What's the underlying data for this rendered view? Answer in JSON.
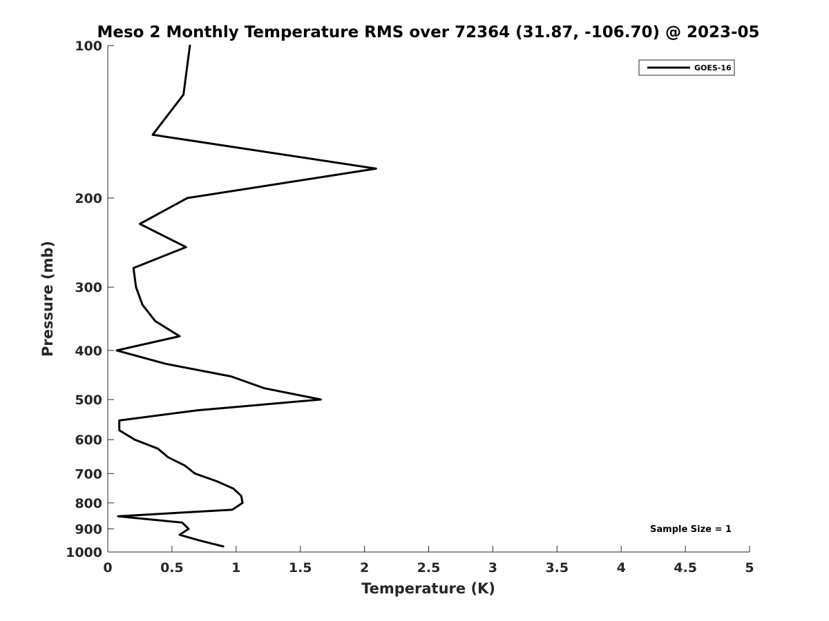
{
  "chart_data": {
    "type": "line",
    "title": "Meso 2 Monthly Temperature RMS over 72364 (31.87, -106.70) @ 2023-05",
    "xlabel": "Temperature (K)",
    "ylabel": "Pressure (mb)",
    "xlim": [
      0,
      5
    ],
    "ylim": [
      100,
      1000
    ],
    "y_scale": "log",
    "y_reversed": true,
    "grid": false,
    "x_ticks": [
      "0",
      "0.5",
      "1",
      "1.5",
      "2",
      "2.5",
      "3",
      "3.5",
      "4",
      "4.5",
      "5"
    ],
    "y_ticks": [
      {
        "value": 100,
        "label": "100"
      },
      {
        "value": 200,
        "label": "200"
      },
      {
        "value": 300,
        "label": "300"
      },
      {
        "value": 400,
        "label": "400"
      },
      {
        "value": 500,
        "label": "500"
      },
      {
        "value": 600,
        "label": "600"
      },
      {
        "value": 700,
        "label": "700"
      },
      {
        "value": 800,
        "label": "800"
      },
      {
        "value": 900,
        "label": "900"
      },
      {
        "value": 1000,
        "label": "1000"
      }
    ],
    "legend_position": "top-right",
    "series": [
      {
        "name": "GOES-16",
        "color": "#000000",
        "points": [
          {
            "x": 0.64,
            "p": 100
          },
          {
            "x": 0.59,
            "p": 125
          },
          {
            "x": 0.35,
            "p": 150
          },
          {
            "x": 2.09,
            "p": 175
          },
          {
            "x": 0.62,
            "p": 200
          },
          {
            "x": 0.25,
            "p": 225
          },
          {
            "x": 0.61,
            "p": 250
          },
          {
            "x": 0.2,
            "p": 275
          },
          {
            "x": 0.22,
            "p": 300
          },
          {
            "x": 0.27,
            "p": 325
          },
          {
            "x": 0.37,
            "p": 350
          },
          {
            "x": 0.56,
            "p": 375
          },
          {
            "x": 0.07,
            "p": 400
          },
          {
            "x": 0.45,
            "p": 425
          },
          {
            "x": 0.96,
            "p": 450
          },
          {
            "x": 1.22,
            "p": 475
          },
          {
            "x": 1.66,
            "p": 500
          },
          {
            "x": 0.7,
            "p": 525
          },
          {
            "x": 0.09,
            "p": 550
          },
          {
            "x": 0.09,
            "p": 575
          },
          {
            "x": 0.21,
            "p": 600
          },
          {
            "x": 0.39,
            "p": 625
          },
          {
            "x": 0.47,
            "p": 650
          },
          {
            "x": 0.6,
            "p": 675
          },
          {
            "x": 0.68,
            "p": 700
          },
          {
            "x": 0.85,
            "p": 725
          },
          {
            "x": 0.98,
            "p": 750
          },
          {
            "x": 1.04,
            "p": 775
          },
          {
            "x": 1.05,
            "p": 800
          },
          {
            "x": 0.97,
            "p": 825
          },
          {
            "x": 0.08,
            "p": 850
          },
          {
            "x": 0.58,
            "p": 875
          },
          {
            "x": 0.63,
            "p": 900
          },
          {
            "x": 0.56,
            "p": 925
          },
          {
            "x": 0.72,
            "p": 950
          },
          {
            "x": 0.9,
            "p": 975
          }
        ]
      }
    ],
    "annotations": [
      {
        "text": "Sample Size = 1",
        "position": "bottom-right"
      }
    ]
  }
}
